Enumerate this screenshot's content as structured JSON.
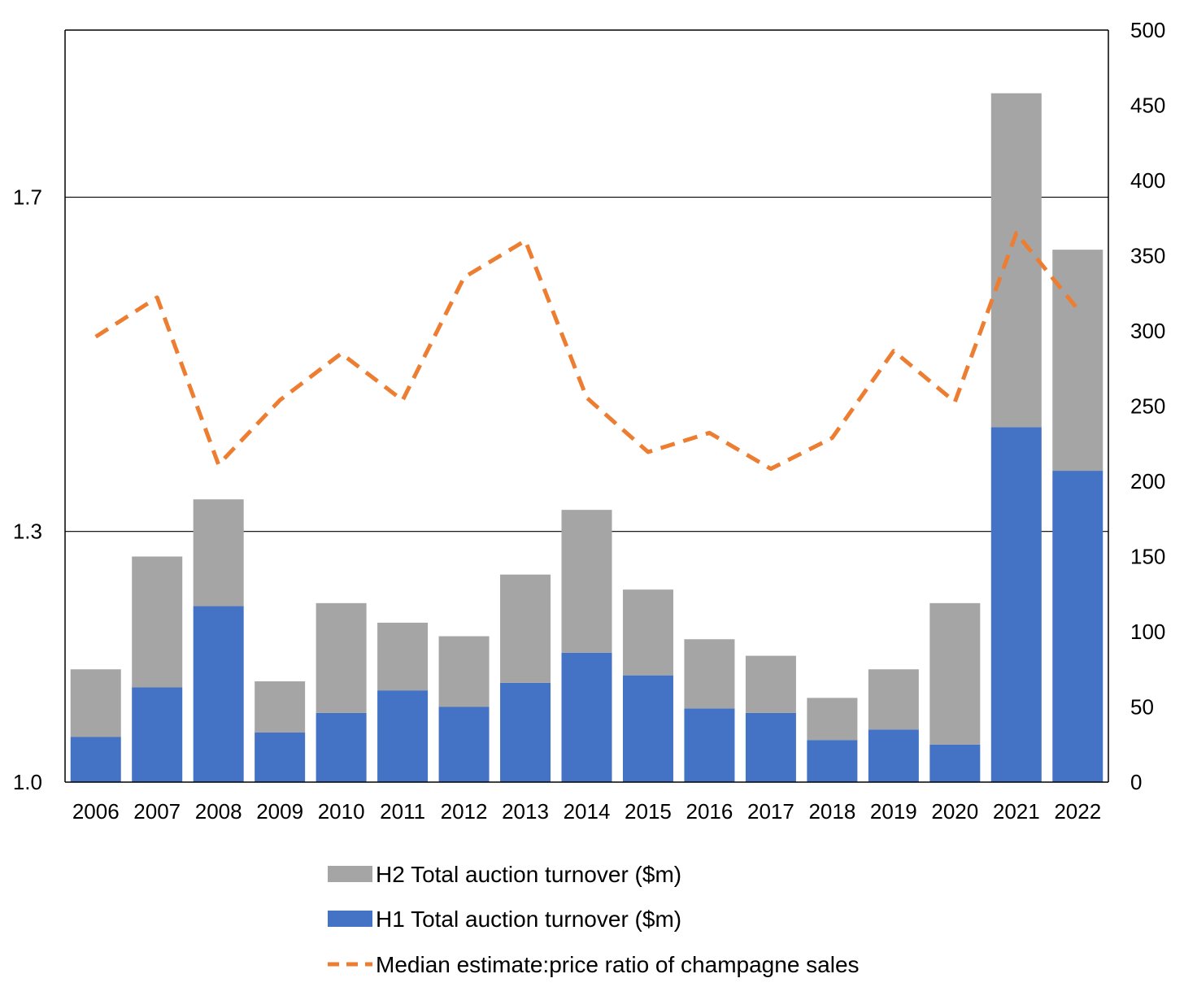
{
  "chart_data": {
    "type": "bar",
    "stacked": true,
    "categories": [
      "2006",
      "2007",
      "2008",
      "2009",
      "2010",
      "2011",
      "2012",
      "2013",
      "2014",
      "2015",
      "2016",
      "2017",
      "2018",
      "2019",
      "2020",
      "2021",
      "2022"
    ],
    "series": [
      {
        "name": "H1 Total auction turnover ($m)",
        "axis": "right",
        "color": "#4472C4",
        "values": [
          30,
          63,
          117,
          33,
          46,
          61,
          50,
          66,
          86,
          71,
          49,
          46,
          28,
          35,
          25,
          236,
          207
        ]
      },
      {
        "name": "H2 Total auction turnover ($m)",
        "axis": "right",
        "color": "#A5A5A5",
        "values": [
          45,
          87,
          71,
          34,
          73,
          45,
          47,
          72,
          95,
          57,
          46,
          38,
          28,
          40,
          94,
          222,
          147
        ]
      },
      {
        "name": "Median estimate:price ratio of champagne sales",
        "type": "line",
        "style": "dashed",
        "axis": "left",
        "color": "#ED7D31",
        "values": [
          1.533,
          1.58,
          1.38,
          1.457,
          1.513,
          1.457,
          1.604,
          1.648,
          1.46,
          1.395,
          1.418,
          1.375,
          1.412,
          1.516,
          1.455,
          1.657,
          1.566
        ]
      }
    ],
    "y_left": {
      "ylim": [
        1.0,
        1.9
      ],
      "ticks": [
        "1.0",
        "1.3",
        "1.7"
      ],
      "tick_values": [
        1.0,
        1.3,
        1.7
      ]
    },
    "y_right": {
      "ylim": [
        0,
        500
      ],
      "ticks": [
        "0",
        "50",
        "100",
        "150",
        "200",
        "250",
        "300",
        "350",
        "400",
        "450",
        "500"
      ],
      "tick_values": [
        0,
        50,
        100,
        150,
        200,
        250,
        300,
        350,
        400,
        450,
        500
      ]
    },
    "grid": "horizontal at left-axis ticks",
    "legend_position": "bottom-center",
    "legend_order": [
      "H2 Total auction turnover ($m)",
      "H1 Total auction turnover ($m)",
      "Median estimate:price ratio of champagne sales"
    ]
  }
}
